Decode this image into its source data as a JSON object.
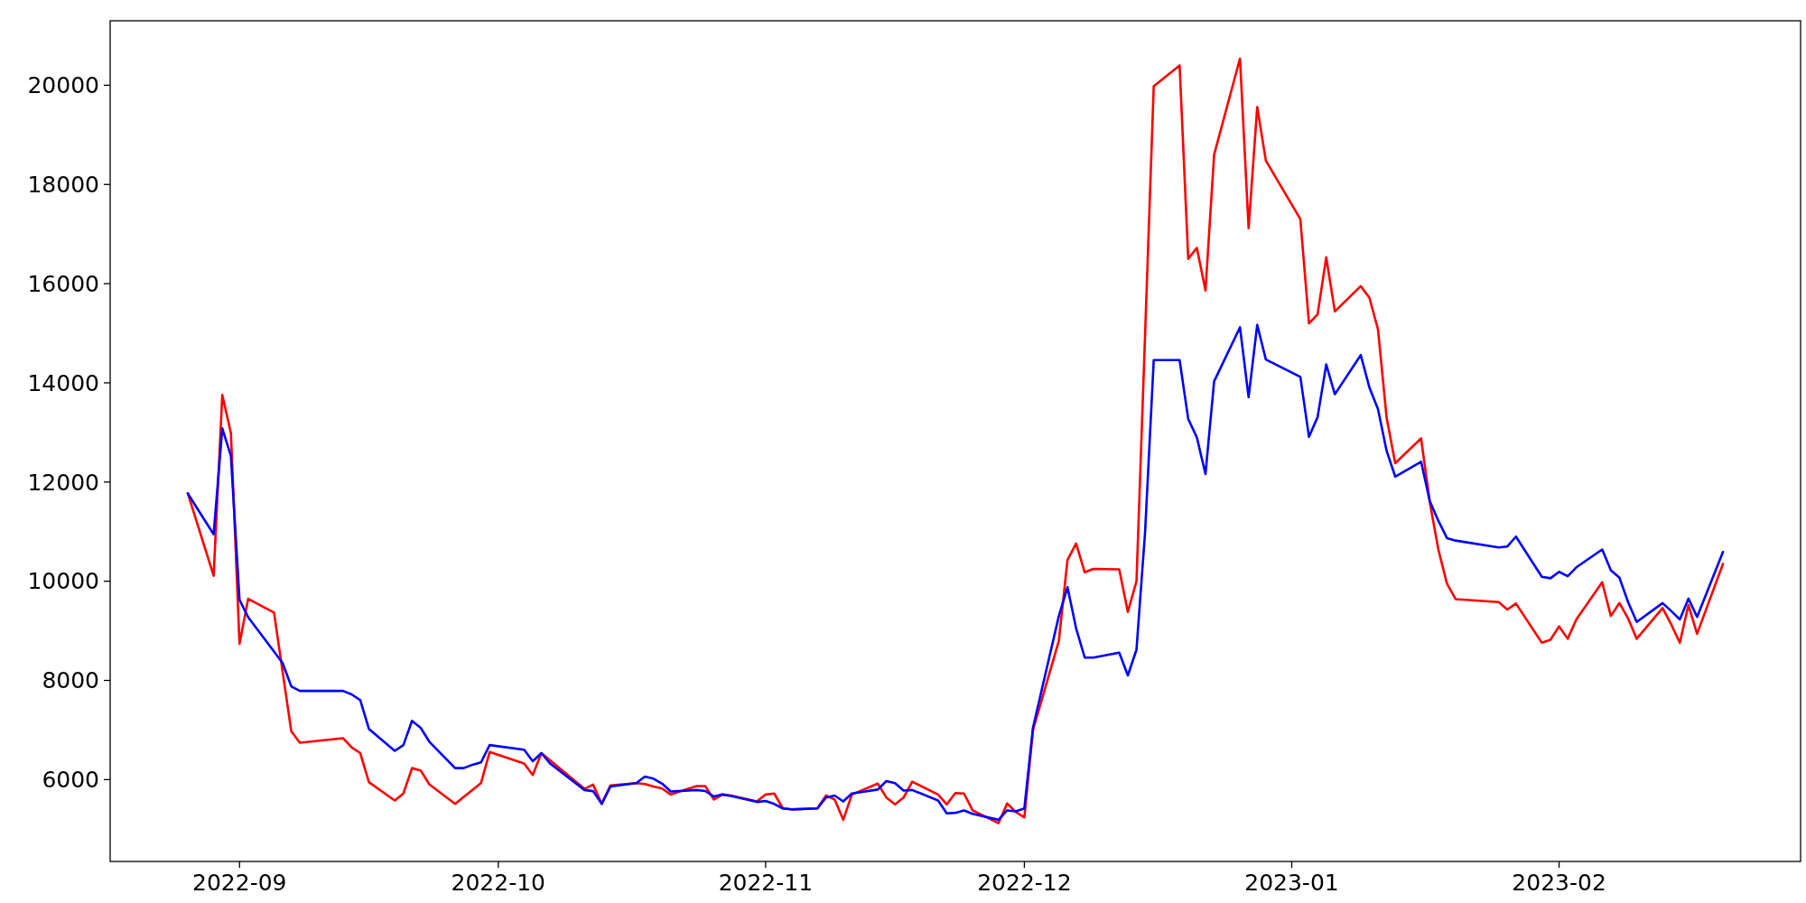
{
  "chart_data": {
    "type": "line",
    "xlim": [
      "2022-08-17",
      "2023-03-01"
    ],
    "ylim": [
      4350,
      21300
    ],
    "xticks": [
      {
        "value": "2022-09-01",
        "label": "2022-09"
      },
      {
        "value": "2022-10-01",
        "label": "2022-10"
      },
      {
        "value": "2022-11-01",
        "label": "2022-11"
      },
      {
        "value": "2022-12-01",
        "label": "2022-12"
      },
      {
        "value": "2023-01-01",
        "label": "2023-01"
      },
      {
        "value": "2023-02-01",
        "label": "2023-02"
      }
    ],
    "yticks": [
      6000,
      8000,
      10000,
      12000,
      14000,
      16000,
      18000,
      20000
    ],
    "grid": false,
    "marker": "none",
    "line_style": "solid",
    "series": [
      {
        "color": "#ff0000",
        "x": [
          "2022-08-26",
          "2022-08-29",
          "2022-08-30",
          "2022-08-31",
          "2022-09-01",
          "2022-09-02",
          "2022-09-05",
          "2022-09-07",
          "2022-09-08",
          "2022-09-13",
          "2022-09-14",
          "2022-09-15",
          "2022-09-16",
          "2022-09-19",
          "2022-09-20",
          "2022-09-21",
          "2022-09-22",
          "2022-09-23",
          "2022-09-26",
          "2022-09-27",
          "2022-09-29",
          "2022-09-30",
          "2022-10-04",
          "2022-10-05",
          "2022-10-06",
          "2022-10-11",
          "2022-10-12",
          "2022-10-13",
          "2022-10-14",
          "2022-10-17",
          "2022-10-18",
          "2022-10-19",
          "2022-10-20",
          "2022-10-21",
          "2022-10-24",
          "2022-10-25",
          "2022-10-26",
          "2022-10-27",
          "2022-10-28",
          "2022-10-31",
          "2022-11-01",
          "2022-11-02",
          "2022-11-03",
          "2022-11-04",
          "2022-11-07",
          "2022-11-08",
          "2022-11-09",
          "2022-11-10",
          "2022-11-11",
          "2022-11-14",
          "2022-11-15",
          "2022-11-16",
          "2022-11-17",
          "2022-11-18",
          "2022-11-21",
          "2022-11-22",
          "2022-11-23",
          "2022-11-24",
          "2022-11-25",
          "2022-11-28",
          "2022-11-29",
          "2022-11-30",
          "2022-12-01",
          "2022-12-02",
          "2022-12-05",
          "2022-12-06",
          "2022-12-07",
          "2022-12-08",
          "2022-12-09",
          "2022-12-12",
          "2022-12-13",
          "2022-12-14",
          "2022-12-16",
          "2022-12-19",
          "2022-12-20",
          "2022-12-21",
          "2022-12-22",
          "2022-12-23",
          "2022-12-26",
          "2022-12-27",
          "2022-12-28",
          "2022-12-29",
          "2023-01-02",
          "2023-01-03",
          "2023-01-04",
          "2023-01-05",
          "2023-01-06",
          "2023-01-09",
          "2023-01-10",
          "2023-01-11",
          "2023-01-12",
          "2023-01-13",
          "2023-01-16",
          "2023-01-17",
          "2023-01-18",
          "2023-01-19",
          "2023-01-20",
          "2023-01-25",
          "2023-01-26",
          "2023-01-27",
          "2023-01-30",
          "2023-01-31",
          "2023-02-01",
          "2023-02-02",
          "2023-02-03",
          "2023-02-06",
          "2023-02-07",
          "2023-02-08",
          "2023-02-09",
          "2023-02-10",
          "2023-02-13",
          "2023-02-14",
          "2023-02-15",
          "2023-02-16",
          "2023-02-17",
          "2023-02-20"
        ],
        "values": [
          11770,
          10110,
          13756,
          12990,
          8740,
          9645,
          9367,
          6975,
          6743,
          6836,
          6650,
          6534,
          5950,
          5580,
          5720,
          6232,
          6186,
          5907,
          5512,
          5651,
          5930,
          6557,
          6325,
          6093,
          6534,
          5814,
          5900,
          5512,
          5884,
          5930,
          5910,
          5860,
          5820,
          5700,
          5870,
          5870,
          5600,
          5700,
          5680,
          5560,
          5700,
          5720,
          5420,
          5400,
          5420,
          5680,
          5600,
          5190,
          5700,
          5920,
          5640,
          5500,
          5640,
          5960,
          5700,
          5500,
          5730,
          5720,
          5380,
          5120,
          5520,
          5350,
          5240,
          7000,
          8800,
          10430,
          10760,
          10180,
          10250,
          10240,
          9380,
          10000,
          19980,
          20400,
          16500,
          16720,
          15860,
          18600,
          20540,
          17120,
          19560,
          18480,
          17300,
          15200,
          15380,
          16530,
          15440,
          15950,
          15720,
          15080,
          13300,
          12380,
          12880,
          11600,
          10640,
          9950,
          9640,
          9580,
          9430,
          9550,
          8760,
          8820,
          9090,
          8840,
          9230,
          9980,
          9300,
          9560,
          9250,
          8840,
          9460,
          9130,
          8760,
          9520,
          8940,
          10350
        ]
      },
      {
        "color": "#0000ff",
        "x": [
          "2022-08-26",
          "2022-08-29",
          "2022-08-30",
          "2022-08-31",
          "2022-09-01",
          "2022-09-02",
          "2022-09-06",
          "2022-09-07",
          "2022-09-08",
          "2022-09-13",
          "2022-09-14",
          "2022-09-15",
          "2022-09-16",
          "2022-09-19",
          "2022-09-20",
          "2022-09-21",
          "2022-09-22",
          "2022-09-23",
          "2022-09-26",
          "2022-09-27",
          "2022-09-28",
          "2022-09-29",
          "2022-09-30",
          "2022-10-04",
          "2022-10-05",
          "2022-10-06",
          "2022-10-07",
          "2022-10-11",
          "2022-10-12",
          "2022-10-13",
          "2022-10-14",
          "2022-10-17",
          "2022-10-18",
          "2022-10-19",
          "2022-10-20",
          "2022-10-21",
          "2022-10-24",
          "2022-10-25",
          "2022-10-26",
          "2022-10-27",
          "2022-10-28",
          "2022-10-31",
          "2022-11-01",
          "2022-11-02",
          "2022-11-03",
          "2022-11-04",
          "2022-11-07",
          "2022-11-08",
          "2022-11-09",
          "2022-11-10",
          "2022-11-11",
          "2022-11-14",
          "2022-11-15",
          "2022-11-16",
          "2022-11-17",
          "2022-11-18",
          "2022-11-21",
          "2022-11-22",
          "2022-11-23",
          "2022-11-24",
          "2022-11-25",
          "2022-11-28",
          "2022-11-29",
          "2022-11-30",
          "2022-12-01",
          "2022-12-02",
          "2022-12-05",
          "2022-12-06",
          "2022-12-07",
          "2022-12-08",
          "2022-12-09",
          "2022-12-12",
          "2022-12-13",
          "2022-12-14",
          "2022-12-15",
          "2022-12-16",
          "2022-12-19",
          "2022-12-20",
          "2022-12-21",
          "2022-12-22",
          "2022-12-23",
          "2022-12-26",
          "2022-12-27",
          "2022-12-28",
          "2022-12-29",
          "2023-01-02",
          "2023-01-03",
          "2023-01-04",
          "2023-01-05",
          "2023-01-06",
          "2023-01-09",
          "2023-01-10",
          "2023-01-11",
          "2023-01-12",
          "2023-01-13",
          "2023-01-16",
          "2023-01-17",
          "2023-01-18",
          "2023-01-19",
          "2023-01-20",
          "2023-01-25",
          "2023-01-26",
          "2023-01-27",
          "2023-01-30",
          "2023-01-31",
          "2023-02-01",
          "2023-02-02",
          "2023-02-03",
          "2023-02-06",
          "2023-02-07",
          "2023-02-08",
          "2023-02-09",
          "2023-02-10",
          "2023-02-13",
          "2023-02-14",
          "2023-02-15",
          "2023-02-16",
          "2023-02-17",
          "2023-02-20"
        ],
        "values": [
          11770,
          10946,
          13082,
          12525,
          9622,
          9274,
          8350,
          7880,
          7788,
          7788,
          7718,
          7602,
          7022,
          6580,
          6697,
          7185,
          7045,
          6766,
          6232,
          6232,
          6300,
          6348,
          6697,
          6604,
          6371,
          6534,
          6325,
          5791,
          5768,
          5512,
          5860,
          5930,
          6060,
          6020,
          5920,
          5760,
          5790,
          5770,
          5660,
          5700,
          5670,
          5550,
          5570,
          5510,
          5420,
          5400,
          5420,
          5640,
          5680,
          5560,
          5720,
          5800,
          5970,
          5930,
          5780,
          5790,
          5580,
          5320,
          5330,
          5380,
          5310,
          5190,
          5380,
          5360,
          5420,
          7050,
          9300,
          9880,
          9050,
          8460,
          8460,
          8560,
          8100,
          8620,
          11000,
          14460,
          14460,
          13270,
          12900,
          12160,
          14030,
          15120,
          13710,
          15170,
          14470,
          14120,
          12910,
          13310,
          14370,
          13770,
          14560,
          13910,
          13470,
          12630,
          12110,
          12410,
          11620,
          11220,
          10870,
          10820,
          10680,
          10700,
          10900,
          10090,
          10060,
          10190,
          10100,
          10280,
          10640,
          10220,
          10070,
          9580,
          9180,
          9560,
          9400,
          9230,
          9650,
          9280,
          10590
        ]
      }
    ]
  }
}
